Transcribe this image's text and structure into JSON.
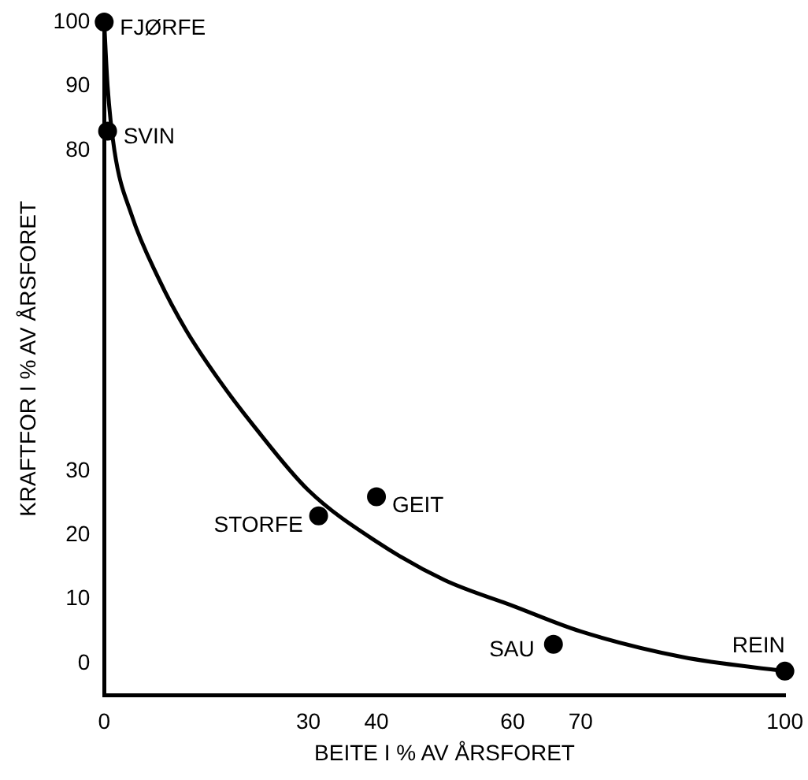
{
  "chart_data": {
    "type": "scatter",
    "xlabel": "BEITE I % AV ÅRSFORET",
    "ylabel": "KRAFTFOR I % AV ÅRSFORET",
    "series": [
      {
        "color": "#000000",
        "marker": "circle",
        "x": [
          0,
          0.5,
          31.5,
          40,
          66,
          100
        ],
        "values": [
          100,
          83,
          23,
          26,
          3,
          -1.2
        ]
      },
      {
        "type": "line",
        "color": "#000000",
        "marker": "none",
        "x": [
          0,
          0.5,
          1.5,
          4,
          8,
          12,
          17,
          22,
          30,
          40,
          50,
          60,
          70,
          85,
          100
        ],
        "values": [
          100,
          90,
          80,
          70,
          60,
          52,
          44,
          37,
          27,
          19,
          13,
          9,
          5,
          1,
          -1.2
        ]
      }
    ],
    "annotations": [
      {
        "text": "FJØRFE",
        "x": 0,
        "y": 100
      },
      {
        "text": "SVIN",
        "x": 0.5,
        "y": 83
      },
      {
        "text": "STORFE",
        "x": 31.5,
        "y": 23
      },
      {
        "text": "GEIT",
        "x": 40,
        "y": 26
      },
      {
        "text": "SAU",
        "x": 66,
        "y": 3
      },
      {
        "text": "REIN",
        "x": 100,
        "y": -1.2
      }
    ],
    "xlim": [
      0,
      100
    ],
    "xticks": [
      0,
      30,
      40,
      60,
      70,
      100
    ],
    "ylim": [
      -5,
      100
    ],
    "yticks": [
      0,
      10,
      20,
      30,
      80,
      90,
      100
    ],
    "grid": false,
    "legend": false,
    "line_style": "solid"
  }
}
